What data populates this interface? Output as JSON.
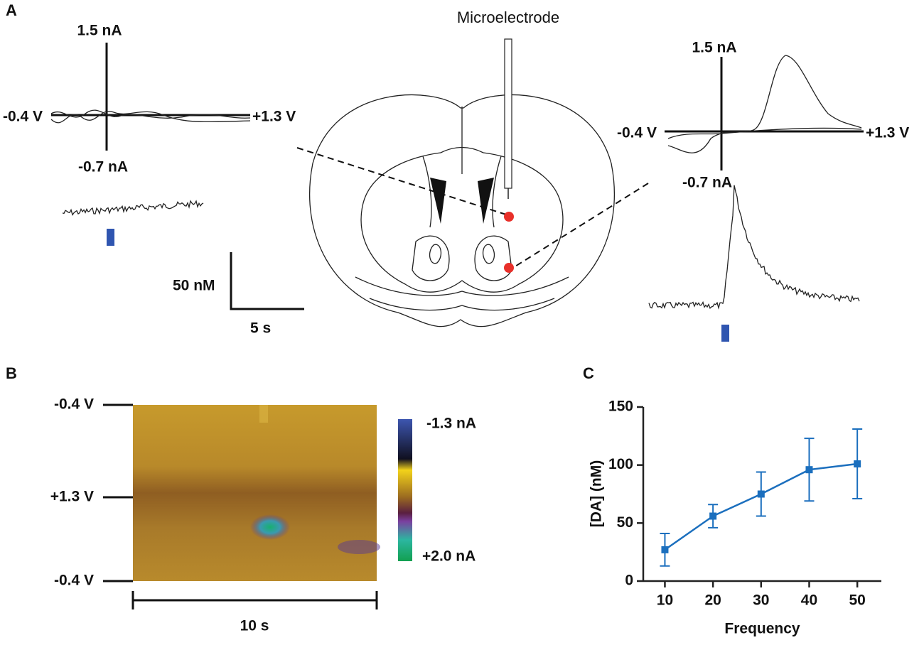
{
  "panels": {
    "a": {
      "label": "A",
      "electrode": "Microelectrode",
      "left": {
        "top": "1.5 nA",
        "bottom": "-0.7 nA",
        "start": "-0.4 V",
        "end": "+1.3 V"
      },
      "right": {
        "top": "1.5 nA",
        "bottom": "-0.7 nA",
        "start": "-0.4 V",
        "end": "+1.3 V"
      },
      "scale": {
        "y": "50 nM",
        "x": "5 s"
      }
    },
    "b": {
      "label": "B",
      "potentials": [
        "-0.4 V",
        "+1.3 V",
        "-0.4 V"
      ],
      "colorbar": [
        "-1.3 nA",
        "+2.0 nA"
      ],
      "scale": "10 s"
    },
    "c": {
      "label": "C"
    }
  },
  "chart_data": {
    "type": "line",
    "xlabel": "Frequency",
    "ylabel": "[DA] (nM)",
    "x": [
      10,
      20,
      30,
      40,
      50
    ],
    "series": [
      {
        "color": "#1b6fbe",
        "values": [
          27,
          56,
          75,
          96,
          101
        ],
        "errors": [
          14,
          10,
          19,
          27,
          30
        ]
      }
    ],
    "xlim": [
      5.5,
      55
    ],
    "xticks": [
      10,
      20,
      30,
      40,
      50
    ],
    "ylim": [
      0,
      150
    ],
    "yticks": [
      0,
      50,
      100,
      150
    ]
  }
}
